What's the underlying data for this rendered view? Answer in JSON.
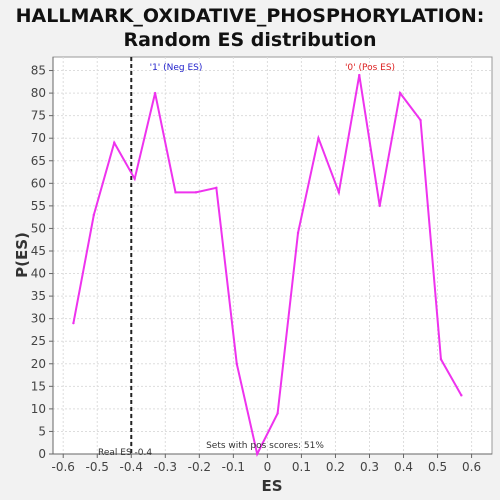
{
  "chart_data": {
    "type": "line",
    "title": "HALLMARK_OXIDATIVE_PHOSPHORYLATION:",
    "subtitle": "Random ES distribution",
    "xlabel": "ES",
    "ylabel": "P(ES)",
    "xlim": [
      -0.63,
      0.66
    ],
    "ylim": [
      0,
      88
    ],
    "xticks": [
      -0.6,
      -0.5,
      -0.4,
      -0.3,
      -0.2,
      -0.1,
      0.0,
      0.1,
      0.2,
      0.3,
      0.4,
      0.5,
      0.6
    ],
    "xtick_labels": [
      "-0.6",
      "-0.5",
      "-0.4",
      "-0.3",
      "-0.2",
      "-0.1",
      "0",
      "0.1",
      "0.2",
      "0.3",
      "0.4",
      "0.5",
      "0.6"
    ],
    "yticks": [
      0,
      5,
      10,
      15,
      20,
      25,
      30,
      35,
      40,
      45,
      50,
      55,
      60,
      65,
      70,
      75,
      80,
      85
    ],
    "grid": true,
    "series": [
      {
        "color": "#ee33ee",
        "x": [
          -0.57,
          -0.51,
          -0.45,
          -0.39,
          -0.33,
          -0.27,
          -0.21,
          -0.15,
          -0.09,
          -0.03,
          0.03,
          0.09,
          0.15,
          0.21,
          0.27,
          0.33,
          0.39,
          0.45,
          0.51,
          0.57,
          0.63
        ],
        "y": [
          29,
          53,
          69,
          61,
          80,
          58,
          58,
          59,
          20,
          0,
          9,
          49,
          70,
          58,
          84,
          55,
          80,
          74,
          21,
          13,
          null
        ]
      }
    ],
    "real_es": -0.4,
    "real_es_label": "Real ES -0.4",
    "neg_label": "'1' (Neg ES)",
    "pos_label": "'0' (Pos ES)",
    "sets_label": "Sets with pos scores: 51%",
    "colors": {
      "line": "#ee33ee",
      "neg_label": "#2222cc",
      "pos_label": "#dd2222",
      "real_es_line": "#222222",
      "grid": "#dddddd"
    }
  }
}
